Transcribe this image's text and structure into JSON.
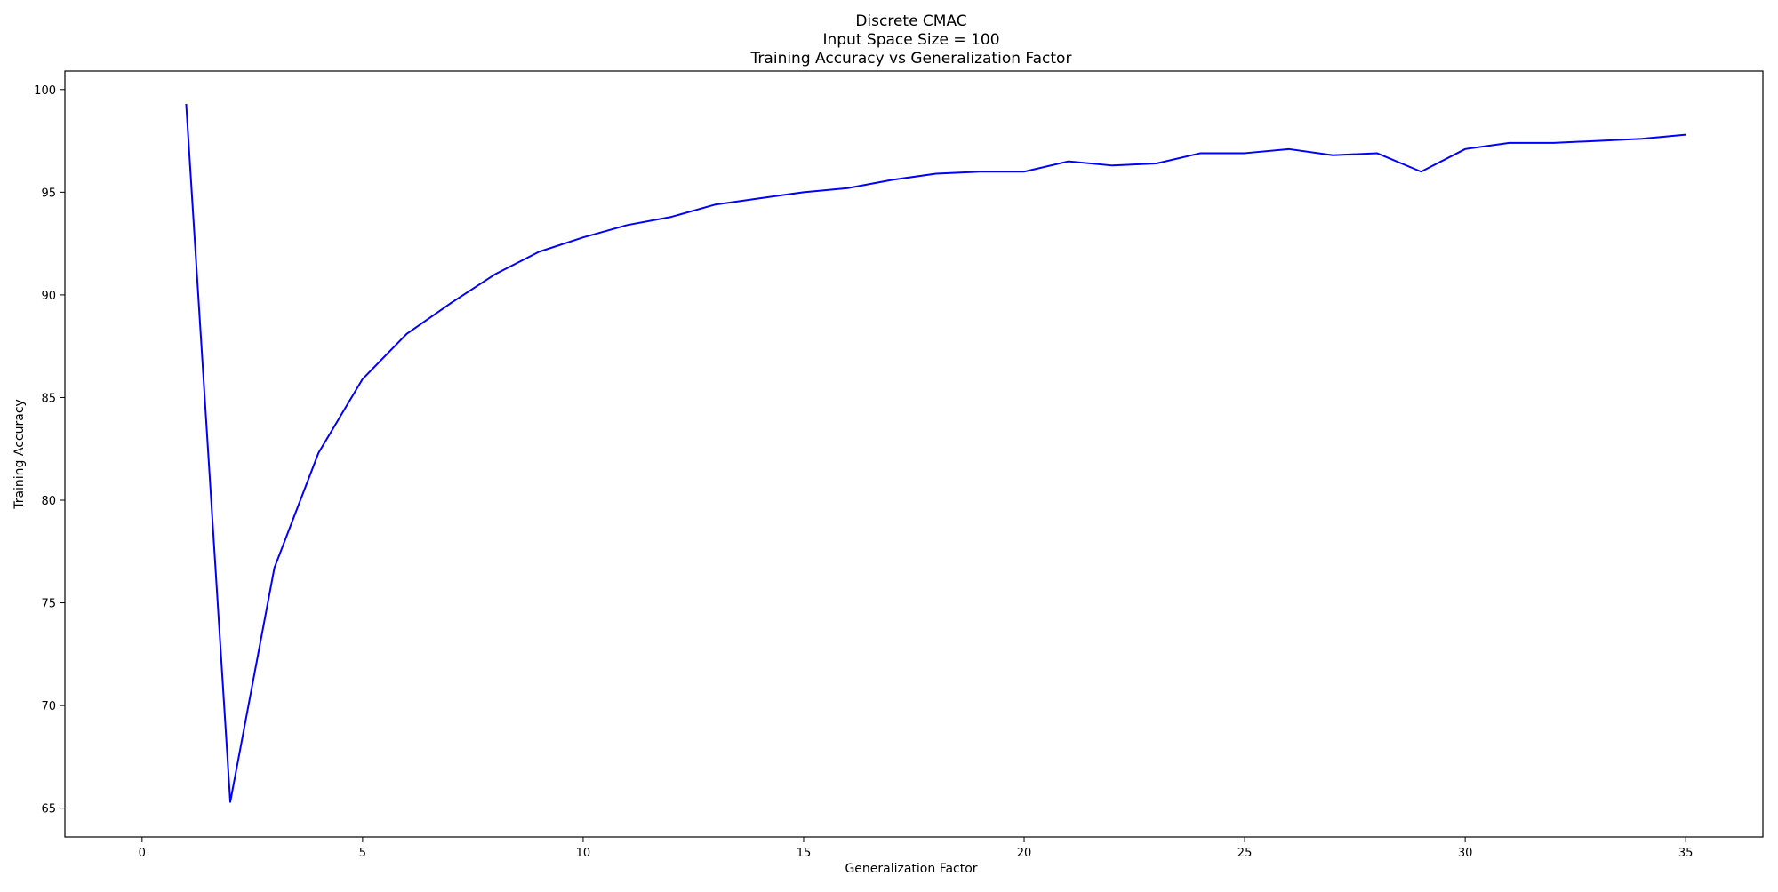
{
  "chart_data": {
    "type": "line",
    "title_lines": [
      "Discrete CMAC",
      "Input Space Size = 100",
      "Training Accuracy vs Generalization Factor"
    ],
    "xlabel": "Generalization Factor",
    "ylabel": "Training Accuracy",
    "xlim": [
      -1.75,
      36.75
    ],
    "ylim": [
      63.6,
      100.9
    ],
    "xticks": [
      0,
      5,
      10,
      15,
      20,
      25,
      30,
      35
    ],
    "yticks": [
      65,
      70,
      75,
      80,
      85,
      90,
      95,
      100
    ],
    "grid": false,
    "legend": "none",
    "series": [
      {
        "color": "#0000ff",
        "x": [
          1,
          2,
          3,
          4,
          5,
          6,
          7,
          8,
          9,
          10,
          11,
          12,
          13,
          14,
          15,
          16,
          17,
          18,
          19,
          20,
          21,
          22,
          23,
          24,
          25,
          26,
          27,
          28,
          29,
          30,
          31,
          32,
          33,
          34,
          35
        ],
        "y": [
          99.3,
          65.3,
          76.7,
          82.3,
          85.9,
          88.1,
          89.6,
          91.0,
          92.1,
          92.8,
          93.4,
          93.8,
          94.4,
          94.7,
          95.0,
          95.2,
          95.6,
          95.9,
          96.0,
          96.0,
          96.5,
          96.3,
          96.4,
          96.9,
          96.9,
          97.1,
          96.8,
          96.9,
          96.0,
          97.1,
          97.4,
          97.4,
          97.5,
          97.6,
          97.8
        ]
      }
    ]
  }
}
